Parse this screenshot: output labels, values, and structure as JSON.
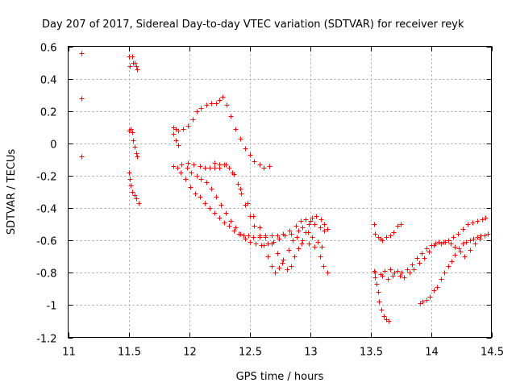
{
  "chart_data": {
    "type": "scatter",
    "title": "Day 207 of 2017, Sidereal Day-to-day VTEC variation (SDTVAR) for receiver reyk",
    "xlabel": "GPS time / hours",
    "ylabel": "SDTVAR / TECUs",
    "xlim": [
      11,
      14.5
    ],
    "ylim": [
      -1.2,
      0.6
    ],
    "x_ticks": [
      11,
      11.5,
      12,
      12.5,
      13,
      13.5,
      14,
      14.5
    ],
    "x_tick_labels": [
      "11",
      "11.5",
      "12",
      "12.5",
      "13",
      "13.5",
      "14",
      "14.5"
    ],
    "y_ticks": [
      -1.2,
      -1,
      -0.8,
      -0.6,
      -0.4,
      -0.2,
      0,
      0.2,
      0.4,
      0.6
    ],
    "y_tick_labels": [
      "-1.2",
      "-1",
      "-0.8",
      "-0.6",
      "-0.4",
      "-0.2",
      "0",
      "0.2",
      "0.4",
      "0.6"
    ],
    "grid": true,
    "marker": "+",
    "marker_color": "#ff0000",
    "series": [
      {
        "name": "s1",
        "points": [
          [
            11.11,
            0.56
          ],
          [
            11.11,
            0.28
          ],
          [
            11.11,
            -0.08
          ]
        ]
      },
      {
        "name": "s2",
        "points": [
          [
            11.5,
            0.54
          ],
          [
            11.51,
            0.48
          ],
          [
            11.53,
            0.54
          ],
          [
            11.54,
            0.5
          ],
          [
            11.55,
            0.5
          ],
          [
            11.56,
            0.48
          ],
          [
            11.57,
            0.46
          ]
        ]
      },
      {
        "name": "s3",
        "points": [
          [
            11.5,
            0.08
          ],
          [
            11.52,
            0.09
          ],
          [
            11.53,
            0.07
          ],
          [
            11.54,
            0.02
          ],
          [
            11.55,
            -0.02
          ],
          [
            11.56,
            -0.06
          ],
          [
            11.57,
            -0.08
          ]
        ]
      },
      {
        "name": "s4",
        "points": [
          [
            11.5,
            -0.18
          ],
          [
            11.51,
            -0.22
          ],
          [
            11.52,
            -0.26
          ],
          [
            11.53,
            -0.3
          ],
          [
            11.55,
            -0.32
          ],
          [
            11.56,
            -0.34
          ],
          [
            11.58,
            -0.37
          ]
        ]
      },
      {
        "name": "s5",
        "points": [
          [
            11.87,
            0.1
          ],
          [
            11.89,
            0.09
          ],
          [
            11.91,
            0.08
          ],
          [
            11.95,
            0.09
          ],
          [
            11.99,
            0.11
          ],
          [
            12.03,
            0.15
          ],
          [
            12.06,
            0.2
          ],
          [
            12.1,
            0.22
          ],
          [
            12.14,
            0.24
          ],
          [
            12.18,
            0.25
          ],
          [
            12.22,
            0.25
          ],
          [
            12.25,
            0.27
          ],
          [
            12.28,
            0.29
          ],
          [
            12.31,
            0.24
          ],
          [
            12.34,
            0.17
          ],
          [
            12.38,
            0.09
          ],
          [
            12.42,
            0.03
          ],
          [
            12.46,
            -0.03
          ],
          [
            12.5,
            -0.07
          ],
          [
            12.54,
            -0.11
          ],
          [
            12.58,
            -0.13
          ],
          [
            12.62,
            -0.15
          ],
          [
            12.66,
            -0.14
          ]
        ]
      },
      {
        "name": "s6",
        "points": [
          [
            11.87,
            0.06
          ],
          [
            11.89,
            0.02
          ],
          [
            11.91,
            -0.01
          ]
        ]
      },
      {
        "name": "s7",
        "points": [
          [
            11.87,
            -0.14
          ],
          [
            11.9,
            -0.15
          ],
          [
            11.93,
            -0.18
          ],
          [
            11.97,
            -0.22
          ],
          [
            12.01,
            -0.27
          ],
          [
            12.05,
            -0.31
          ],
          [
            12.09,
            -0.33
          ],
          [
            12.13,
            -0.37
          ],
          [
            12.17,
            -0.4
          ],
          [
            12.21,
            -0.43
          ],
          [
            12.25,
            -0.46
          ],
          [
            12.29,
            -0.49
          ],
          [
            12.33,
            -0.51
          ],
          [
            12.37,
            -0.54
          ],
          [
            12.41,
            -0.56
          ],
          [
            12.45,
            -0.57
          ],
          [
            12.49,
            -0.57
          ],
          [
            12.53,
            -0.58
          ],
          [
            12.58,
            -0.58
          ],
          [
            12.63,
            -0.58
          ],
          [
            12.68,
            -0.57
          ],
          [
            12.73,
            -0.57
          ],
          [
            12.78,
            -0.56
          ],
          [
            12.83,
            -0.54
          ],
          [
            12.88,
            -0.51
          ],
          [
            12.92,
            -0.48
          ],
          [
            12.96,
            -0.47
          ],
          [
            13.0,
            -0.48
          ],
          [
            13.04,
            -0.5
          ],
          [
            13.08,
            -0.52
          ],
          [
            13.12,
            -0.54
          ]
        ]
      },
      {
        "name": "s8",
        "points": [
          [
            11.94,
            -0.13
          ],
          [
            11.98,
            -0.15
          ],
          [
            12.02,
            -0.18
          ],
          [
            12.06,
            -0.2
          ],
          [
            12.1,
            -0.22
          ],
          [
            12.14,
            -0.24
          ],
          [
            12.18,
            -0.28
          ],
          [
            12.22,
            -0.33
          ],
          [
            12.26,
            -0.38
          ],
          [
            12.3,
            -0.43
          ],
          [
            12.34,
            -0.48
          ],
          [
            12.38,
            -0.52
          ],
          [
            12.42,
            -0.56
          ],
          [
            12.46,
            -0.59
          ],
          [
            12.5,
            -0.61
          ],
          [
            12.55,
            -0.62
          ],
          [
            12.6,
            -0.63
          ],
          [
            12.65,
            -0.62
          ],
          [
            12.7,
            -0.61
          ],
          [
            12.74,
            -0.59
          ],
          [
            12.79,
            -0.57
          ],
          [
            12.84,
            -0.56
          ],
          [
            12.89,
            -0.58
          ],
          [
            12.94,
            -0.6
          ],
          [
            12.99,
            -0.62
          ],
          [
            13.04,
            -0.64
          ],
          [
            13.08,
            -0.7
          ],
          [
            13.11,
            -0.76
          ],
          [
            13.14,
            -0.8
          ]
        ]
      },
      {
        "name": "s9",
        "points": [
          [
            11.99,
            -0.12
          ],
          [
            12.04,
            -0.13
          ],
          [
            12.09,
            -0.14
          ],
          [
            12.13,
            -0.15
          ],
          [
            12.17,
            -0.15
          ],
          [
            12.21,
            -0.15
          ],
          [
            12.25,
            -0.13
          ],
          [
            12.29,
            -0.13
          ],
          [
            12.33,
            -0.15
          ],
          [
            12.37,
            -0.19
          ],
          [
            12.4,
            -0.25
          ],
          [
            12.43,
            -0.31
          ],
          [
            12.46,
            -0.38
          ],
          [
            12.5,
            -0.45
          ],
          [
            12.54,
            -0.51
          ],
          [
            12.58,
            -0.57
          ],
          [
            12.62,
            -0.63
          ],
          [
            12.65,
            -0.7
          ],
          [
            12.68,
            -0.76
          ],
          [
            12.71,
            -0.8
          ],
          [
            12.74,
            -0.77
          ],
          [
            12.78,
            -0.72
          ],
          [
            12.82,
            -0.66
          ],
          [
            12.86,
            -0.6
          ],
          [
            12.9,
            -0.54
          ],
          [
            12.94,
            -0.52
          ],
          [
            12.98,
            -0.55
          ],
          [
            13.02,
            -0.58
          ],
          [
            13.06,
            -0.61
          ],
          [
            13.1,
            -0.64
          ]
        ]
      },
      {
        "name": "s10",
        "points": [
          [
            12.21,
            -0.12
          ],
          [
            12.25,
            -0.15
          ],
          [
            12.3,
            -0.13
          ],
          [
            12.36,
            -0.18
          ],
          [
            12.42,
            -0.28
          ],
          [
            12.48,
            -0.37
          ],
          [
            12.53,
            -0.45
          ],
          [
            12.58,
            -0.52
          ],
          [
            12.63,
            -0.57
          ],
          [
            12.68,
            -0.62
          ],
          [
            12.73,
            -0.68
          ],
          [
            12.77,
            -0.74
          ],
          [
            12.81,
            -0.78
          ],
          [
            12.84,
            -0.76
          ],
          [
            12.87,
            -0.7
          ],
          [
            12.9,
            -0.65
          ],
          [
            12.93,
            -0.62
          ],
          [
            12.96,
            -0.55
          ],
          [
            12.99,
            -0.5
          ],
          [
            13.02,
            -0.46
          ],
          [
            13.05,
            -0.45
          ],
          [
            13.09,
            -0.47
          ],
          [
            13.12,
            -0.5
          ],
          [
            13.14,
            -0.53
          ]
        ]
      },
      {
        "name": "s11",
        "points": [
          [
            13.53,
            -0.5
          ],
          [
            13.54,
            -0.56
          ],
          [
            13.56,
            -0.58
          ],
          [
            13.58,
            -0.59
          ],
          [
            13.6,
            -0.6
          ],
          [
            13.63,
            -0.58
          ],
          [
            13.66,
            -0.57
          ],
          [
            13.69,
            -0.55
          ],
          [
            13.72,
            -0.51
          ],
          [
            13.75,
            -0.5
          ]
        ]
      },
      {
        "name": "s12",
        "points": [
          [
            13.53,
            -0.79
          ],
          [
            13.54,
            -0.83
          ],
          [
            13.55,
            -0.87
          ],
          [
            13.56,
            -0.92
          ],
          [
            13.57,
            -0.98
          ],
          [
            13.59,
            -1.03
          ],
          [
            13.61,
            -1.07
          ],
          [
            13.63,
            -1.09
          ],
          [
            13.65,
            -1.1
          ]
        ]
      },
      {
        "name": "s13",
        "points": [
          [
            13.54,
            -0.8
          ],
          [
            13.58,
            -0.81
          ],
          [
            13.62,
            -0.79
          ],
          [
            13.66,
            -0.78
          ],
          [
            13.7,
            -0.8
          ],
          [
            13.74,
            -0.82
          ],
          [
            13.78,
            -0.83
          ],
          [
            13.82,
            -0.8
          ],
          [
            13.86,
            -0.78
          ],
          [
            13.9,
            -0.74
          ],
          [
            13.94,
            -0.71
          ],
          [
            13.98,
            -0.67
          ],
          [
            14.02,
            -0.63
          ],
          [
            14.06,
            -0.61
          ],
          [
            14.1,
            -0.61
          ],
          [
            14.14,
            -0.6
          ],
          [
            14.18,
            -0.58
          ],
          [
            14.22,
            -0.56
          ],
          [
            14.26,
            -0.53
          ],
          [
            14.3,
            -0.5
          ],
          [
            14.34,
            -0.49
          ],
          [
            14.38,
            -0.48
          ],
          [
            14.42,
            -0.47
          ],
          [
            14.45,
            -0.46
          ]
        ]
      },
      {
        "name": "s14",
        "points": [
          [
            13.6,
            -0.82
          ],
          [
            13.64,
            -0.84
          ],
          [
            13.68,
            -0.82
          ],
          [
            13.72,
            -0.79
          ],
          [
            13.76,
            -0.8
          ],
          [
            13.8,
            -0.78
          ],
          [
            13.84,
            -0.75
          ],
          [
            13.88,
            -0.71
          ],
          [
            13.92,
            -0.68
          ],
          [
            13.96,
            -0.65
          ],
          [
            14.0,
            -0.63
          ],
          [
            14.04,
            -0.62
          ],
          [
            14.08,
            -0.62
          ],
          [
            14.12,
            -0.61
          ],
          [
            14.16,
            -0.62
          ],
          [
            14.2,
            -0.64
          ],
          [
            14.24,
            -0.67
          ],
          [
            14.28,
            -0.7
          ],
          [
            14.32,
            -0.66
          ],
          [
            14.36,
            -0.62
          ],
          [
            14.4,
            -0.59
          ],
          [
            14.44,
            -0.57
          ],
          [
            14.47,
            -0.56
          ]
        ]
      },
      {
        "name": "s15",
        "points": [
          [
            13.91,
            -0.99
          ],
          [
            13.93,
            -0.98
          ],
          [
            13.96,
            -0.97
          ],
          [
            13.99,
            -0.95
          ],
          [
            14.02,
            -0.91
          ],
          [
            14.05,
            -0.89
          ],
          [
            14.08,
            -0.84
          ],
          [
            14.11,
            -0.8
          ],
          [
            14.14,
            -0.76
          ],
          [
            14.17,
            -0.73
          ],
          [
            14.2,
            -0.69
          ],
          [
            14.23,
            -0.65
          ],
          [
            14.26,
            -0.62
          ],
          [
            14.29,
            -0.61
          ],
          [
            14.32,
            -0.6
          ],
          [
            14.35,
            -0.59
          ],
          [
            14.38,
            -0.58
          ],
          [
            14.41,
            -0.57
          ],
          [
            14.44,
            -0.57
          ],
          [
            14.47,
            -0.56
          ]
        ]
      }
    ]
  }
}
